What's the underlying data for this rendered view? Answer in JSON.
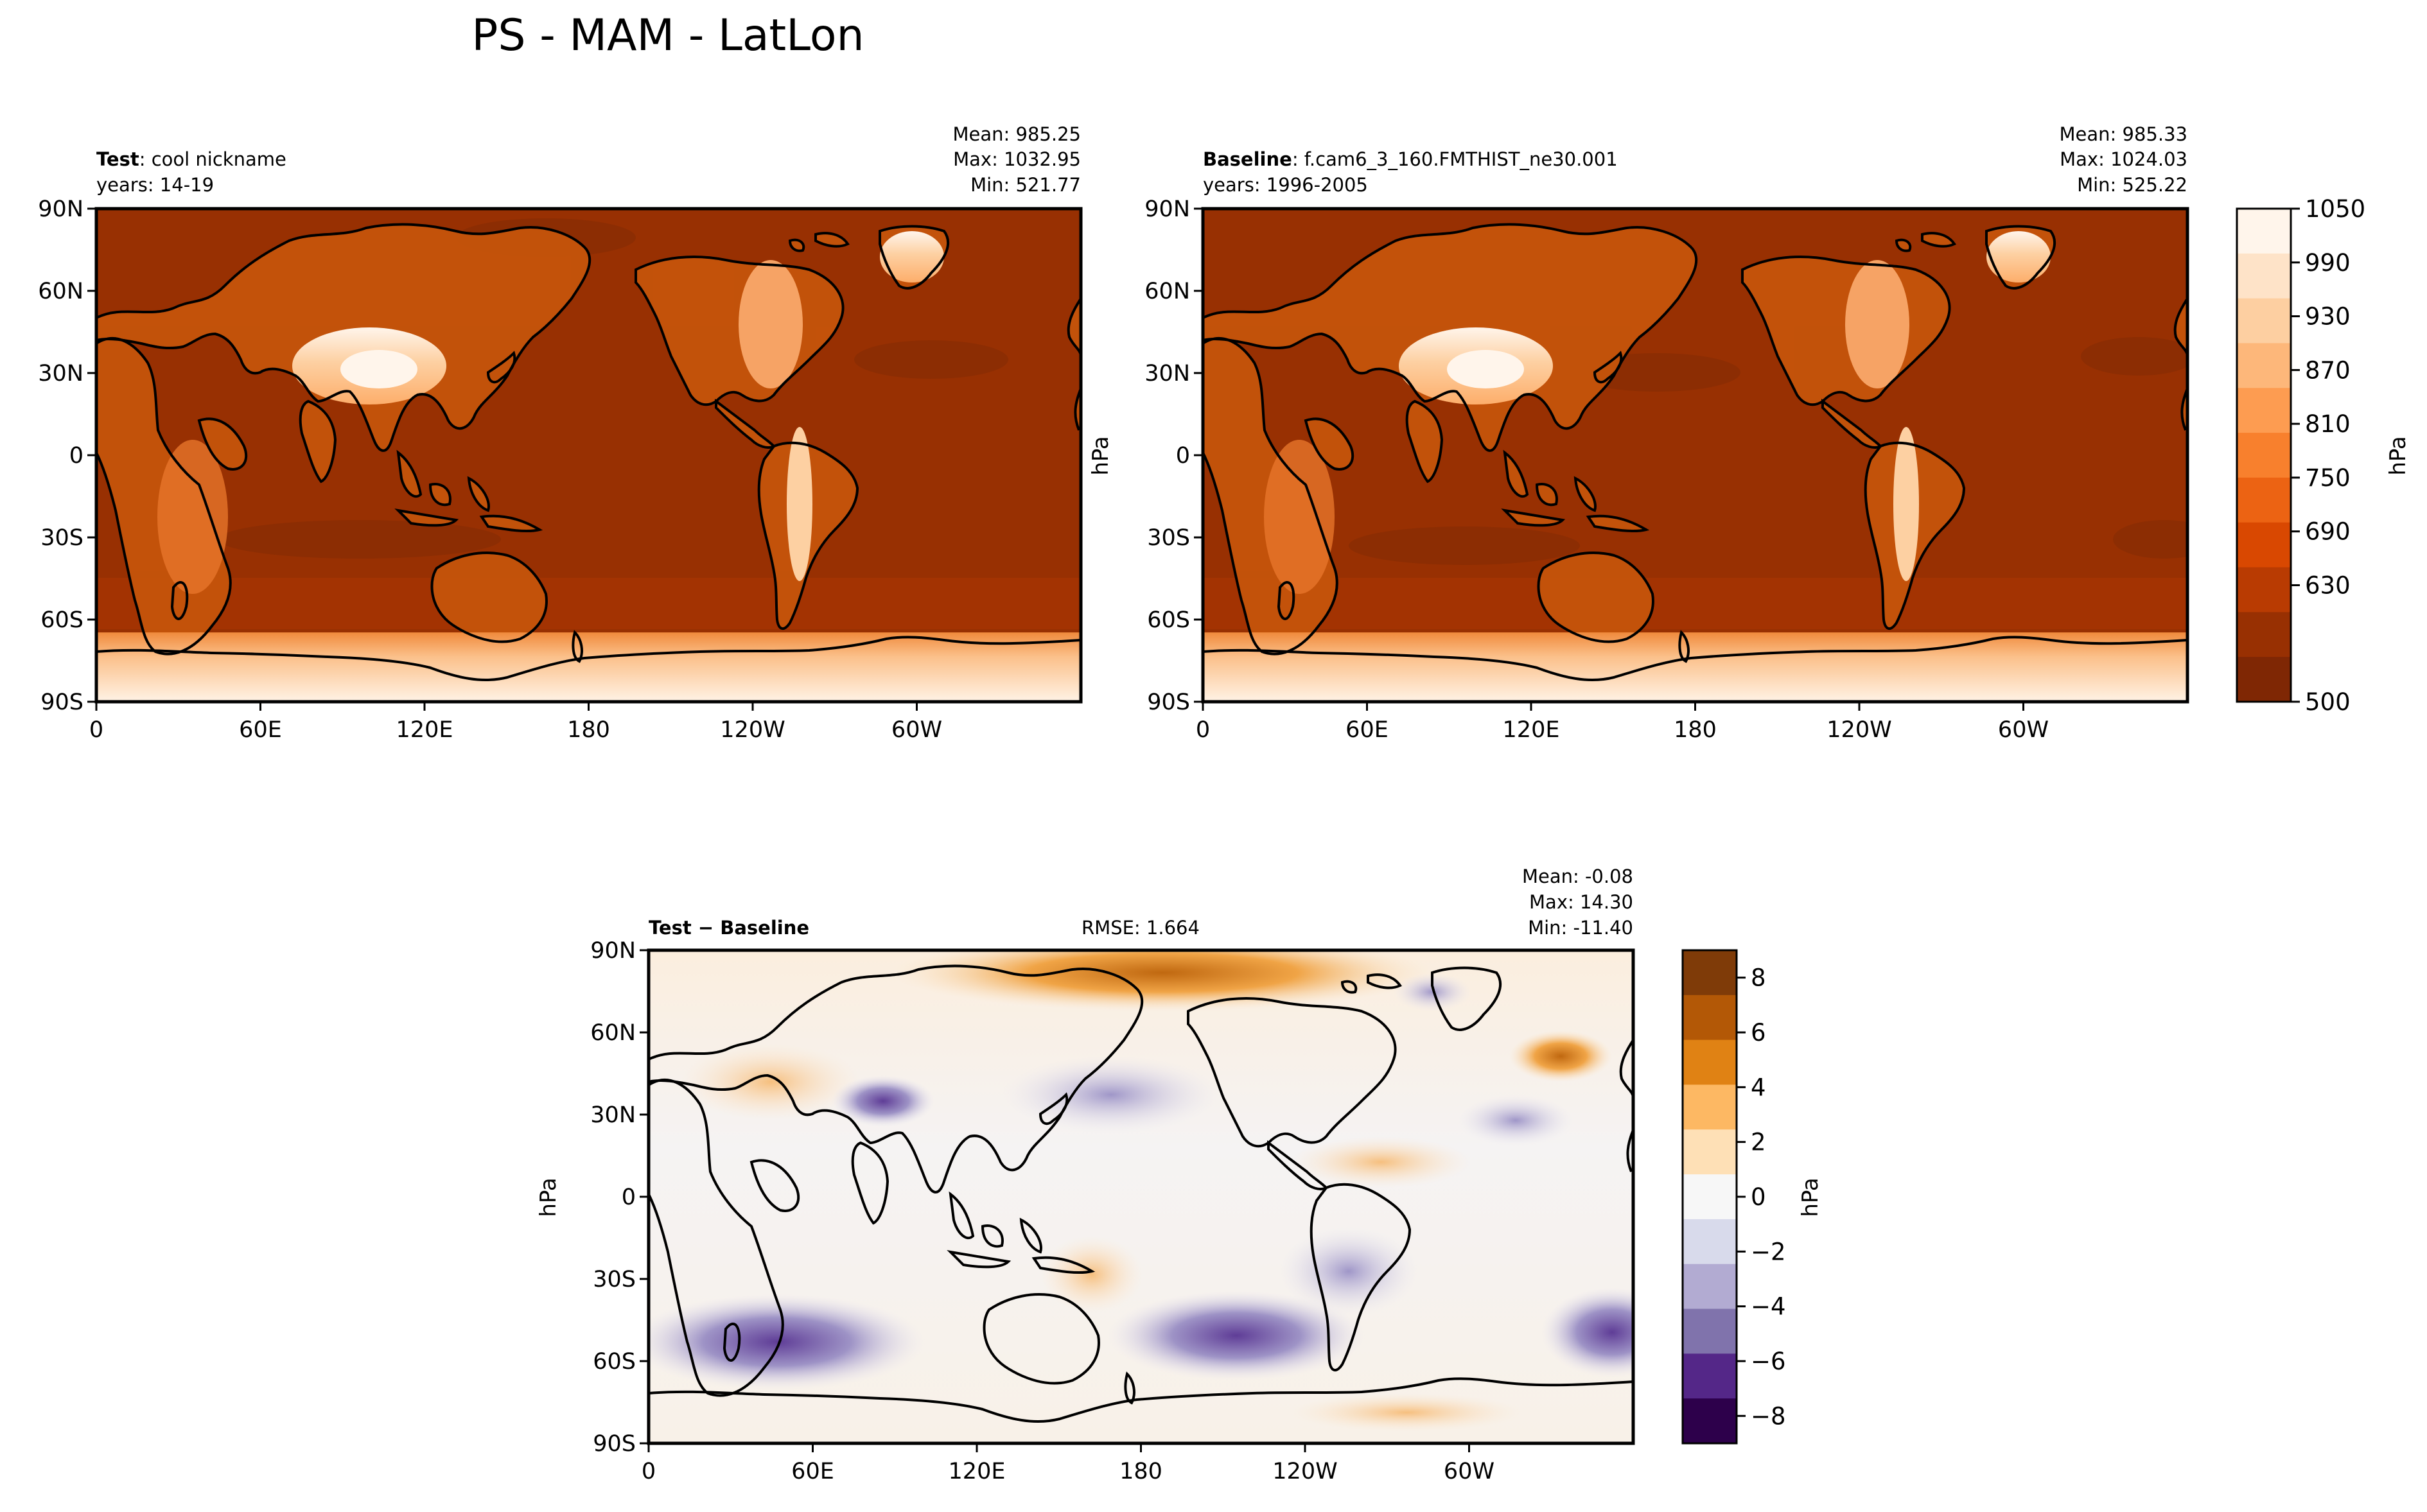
{
  "figure": {
    "title": "PS - MAM - LatLon"
  },
  "chart_data": [
    {
      "type": "heatmap",
      "panel": "test",
      "label_bold": "Test",
      "label_text": ": cool nickname",
      "years": "years: 14-19",
      "stats": {
        "mean": "Mean: 985.25",
        "max": "Max: 1032.95",
        "min": "Min: 521.77"
      },
      "xticks": [
        "0",
        "60E",
        "120E",
        "180",
        "120W",
        "60W"
      ],
      "yticks": [
        "90N",
        "60N",
        "30N",
        "0",
        "30S",
        "60S",
        "90S"
      ],
      "xlim": [
        0,
        360
      ],
      "ylim": [
        -90,
        90
      ]
    },
    {
      "type": "heatmap",
      "panel": "baseline",
      "label_bold": "Baseline",
      "label_text": ": f.cam6_3_160.FMTHIST_ne30.001",
      "years": "years: 1996-2005",
      "stats": {
        "mean": "Mean: 985.33",
        "max": "Max: 1024.03",
        "min": "Min: 525.22"
      },
      "xticks": [
        "0",
        "60E",
        "120E",
        "180",
        "120W",
        "60W"
      ],
      "yticks": [
        "90N",
        "60N",
        "30N",
        "0",
        "30S",
        "60S",
        "90S"
      ],
      "ylabel": "hPa",
      "xlim": [
        0,
        360
      ],
      "ylim": [
        -90,
        90
      ],
      "colorbar": {
        "label": "hPa",
        "ticks": [
          "1050",
          "990",
          "930",
          "870",
          "810",
          "750",
          "690",
          "630",
          "500"
        ],
        "range": [
          500,
          1050
        ],
        "colors": [
          "#fff5eb",
          "#fee3c8",
          "#fdcfa1",
          "#fdb77a",
          "#fd9c51",
          "#f8802d",
          "#ec6313",
          "#d94801",
          "#b93b02",
          "#983002",
          "#7f2704"
        ]
      }
    },
    {
      "type": "heatmap",
      "panel": "difference",
      "label_bold": "Test − Baseline",
      "rmse": "RMSE: 1.664",
      "stats": {
        "mean": "Mean: -0.08",
        "max": "Max: 14.30",
        "min": "Min: -11.40"
      },
      "xticks": [
        "0",
        "60E",
        "120E",
        "180",
        "120W",
        "60W"
      ],
      "yticks": [
        "90N",
        "60N",
        "30N",
        "0",
        "30S",
        "60S",
        "90S"
      ],
      "ylabel": "hPa",
      "xlim": [
        0,
        360
      ],
      "ylim": [
        -90,
        90
      ],
      "colorbar": {
        "label": "hPa",
        "ticks": [
          "8",
          "6",
          "4",
          "2",
          "0",
          "−2",
          "−4",
          "−6",
          "−8"
        ],
        "range": [
          -9,
          9
        ],
        "colors": [
          "#7f3b08",
          "#b35806",
          "#e08214",
          "#fdb863",
          "#fee0b6",
          "#f7f7f7",
          "#d8daeb",
          "#b2abd2",
          "#8073ac",
          "#542788",
          "#2d004b"
        ]
      }
    }
  ]
}
